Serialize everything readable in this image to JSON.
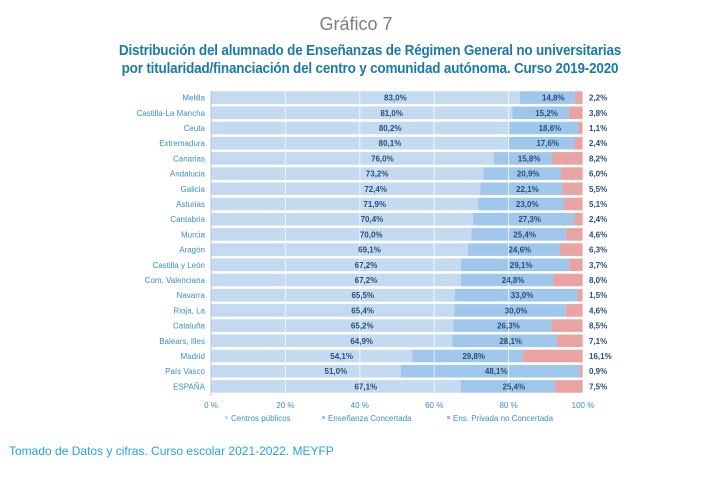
{
  "header": {
    "chart_number": "Gráfico 7"
  },
  "footer": {
    "source": "Tomado de Datos y cifras. Curso escolar 2021-2022.  MEYFP"
  },
  "colors": {
    "publicos": "#c4daf0",
    "concertada": "#9fc7ec",
    "privada": "#e8a4a2",
    "label_text": "#3a8fc2",
    "value_text": "#2a4f7a",
    "title": "#1b7aa8"
  },
  "chart_data": {
    "type": "bar",
    "orientation": "horizontal",
    "stacked": true,
    "title": "Distribución del alumnado de Enseñanzas de Régimen General no universitarias por titularidad/financiación del centro y comunidad autónoma. Curso 2019-2020",
    "title_lines": [
      "Distribución del alumnado de Enseñanzas de Régimen General no universitarias",
      "por titularidad/financiación del centro y comunidad autónoma. Curso 2019-2020"
    ],
    "xlabel": "",
    "ylabel": "",
    "xlim": [
      0,
      100
    ],
    "xticks": [
      0,
      20,
      40,
      60,
      80,
      100
    ],
    "xtick_labels": [
      "0 %",
      "20 %",
      "40 %",
      "60 %",
      "80 %",
      "100 %"
    ],
    "grid": true,
    "legend_position": "bottom",
    "categories": [
      "Melilla",
      "Castilla-La Mancha",
      "Ceuta",
      "Extremadura",
      "Canarias",
      "Andalucia",
      "Galicia",
      "Asturias",
      "Cantabria",
      "Murcia",
      "Aragón",
      "Castilla y León",
      "Com. Valenciana",
      "Navarra",
      "Rioja, La",
      "Cataluña",
      "Balears, Illes",
      "Madrid",
      "País Vasco",
      "ESPAÑA"
    ],
    "series": [
      {
        "name": "Centros públicos",
        "values": [
          83.0,
          81.0,
          80.2,
          80.1,
          76.0,
          73.2,
          72.4,
          71.9,
          70.4,
          70.0,
          69.1,
          67.2,
          67.2,
          65.5,
          65.4,
          65.2,
          64.9,
          54.1,
          51.0,
          67.1
        ],
        "labels": [
          "83,0%",
          "81,0%",
          "80,2%",
          "80,1%",
          "76,0%",
          "73,2%",
          "72,4%",
          "71,9%",
          "70,4%",
          "70,0%",
          "69,1%",
          "67,2%",
          "67,2%",
          "65,5%",
          "65,4%",
          "65,2%",
          "64,9%",
          "54,1%",
          "51,0%",
          "67,1%"
        ]
      },
      {
        "name": "Enseñanza Concertada",
        "values": [
          14.8,
          15.2,
          18.6,
          17.6,
          15.8,
          20.9,
          22.1,
          23.0,
          27.3,
          25.4,
          24.6,
          29.1,
          24.8,
          33.0,
          30.0,
          26.3,
          28.1,
          29.8,
          48.1,
          25.4
        ],
        "labels": [
          "14,8%",
          "15,2%",
          "18,6%",
          "17,6%",
          "15,8%",
          "20,9%",
          "22,1%",
          "23,0%",
          "27,3%",
          "25,4%",
          "24,6%",
          "29,1%",
          "24,8%",
          "33,0%",
          "30,0%",
          "26,3%",
          "28,1%",
          "29,8%",
          "48,1%",
          "25,4%"
        ]
      },
      {
        "name": "Ens. Privada no Concertada",
        "values": [
          2.2,
          3.8,
          1.1,
          2.4,
          8.2,
          6.0,
          5.5,
          5.1,
          2.4,
          4.6,
          6.3,
          3.7,
          8.0,
          1.5,
          4.6,
          8.5,
          7.1,
          16.1,
          0.9,
          7.5
        ],
        "labels": [
          "2,2%",
          "3,8%",
          "1,1%",
          "2,4%",
          "8,2%",
          "6,0%",
          "5,5%",
          "5,1%",
          "2,4%",
          "4,6%",
          "6,3%",
          "3,7%",
          "8,0%",
          "1,5%",
          "4,6%",
          "8,5%",
          "7,1%",
          "16,1%",
          "0,9%",
          "7,5%"
        ]
      }
    ]
  }
}
